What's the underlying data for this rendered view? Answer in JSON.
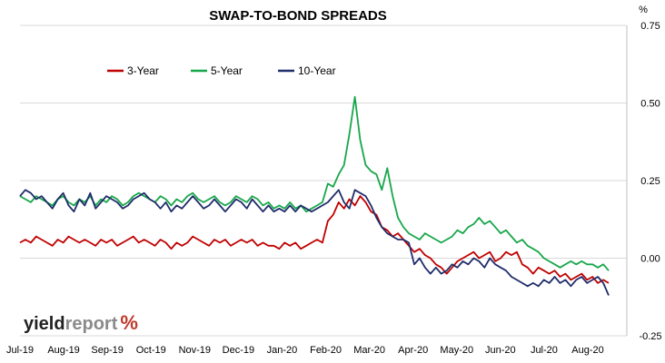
{
  "chart_data": {
    "type": "line",
    "title": "SWAP-TO-BOND SPREADS",
    "y_unit": "%",
    "x_ticks": [
      "Jul-19",
      "Aug-19",
      "Sep-19",
      "Oct-19",
      "Nov-19",
      "Dec-19",
      "Jan-20",
      "Feb-20",
      "Mar-20",
      "Apr-20",
      "May-20",
      "Jun-20",
      "Jul-20",
      "Aug-20"
    ],
    "y_ticks": [
      "0.75",
      "0.50",
      "0.25",
      "0.00",
      "-0.25"
    ],
    "ylim": [
      -0.25,
      0.75
    ],
    "grid": "horizontal",
    "legend_position": "top-left",
    "series": [
      {
        "name": "3-Year",
        "color": "#c00000",
        "values": [
          0.05,
          0.06,
          0.05,
          0.07,
          0.06,
          0.05,
          0.04,
          0.06,
          0.05,
          0.07,
          0.06,
          0.05,
          0.06,
          0.05,
          0.04,
          0.06,
          0.05,
          0.06,
          0.04,
          0.05,
          0.06,
          0.07,
          0.05,
          0.06,
          0.05,
          0.04,
          0.06,
          0.05,
          0.03,
          0.05,
          0.04,
          0.05,
          0.07,
          0.06,
          0.05,
          0.04,
          0.06,
          0.05,
          0.06,
          0.04,
          0.05,
          0.06,
          0.05,
          0.06,
          0.04,
          0.05,
          0.04,
          0.04,
          0.03,
          0.05,
          0.04,
          0.05,
          0.03,
          0.04,
          0.05,
          0.06,
          0.05,
          0.12,
          0.14,
          0.18,
          0.16,
          0.19,
          0.17,
          0.2,
          0.18,
          0.15,
          0.14,
          0.1,
          0.09,
          0.07,
          0.08,
          0.06,
          0.04,
          0.02,
          0.03,
          0.01,
          0.0,
          -0.02,
          -0.03,
          -0.05,
          -0.03,
          -0.01,
          0.0,
          0.01,
          0.02,
          0.0,
          0.01,
          0.02,
          -0.01,
          0.0,
          0.02,
          0.01,
          0.02,
          -0.02,
          -0.03,
          -0.05,
          -0.03,
          -0.04,
          -0.05,
          -0.04,
          -0.06,
          -0.05,
          -0.07,
          -0.06,
          -0.05,
          -0.07,
          -0.06,
          -0.08,
          -0.07,
          -0.08
        ]
      },
      {
        "name": "5-Year",
        "color": "#17a74a",
        "values": [
          0.2,
          0.19,
          0.18,
          0.2,
          0.19,
          0.18,
          0.17,
          0.19,
          0.2,
          0.18,
          0.17,
          0.19,
          0.18,
          0.2,
          0.17,
          0.19,
          0.18,
          0.2,
          0.19,
          0.17,
          0.18,
          0.2,
          0.21,
          0.2,
          0.19,
          0.18,
          0.2,
          0.19,
          0.17,
          0.19,
          0.18,
          0.2,
          0.21,
          0.19,
          0.18,
          0.19,
          0.2,
          0.18,
          0.17,
          0.18,
          0.2,
          0.19,
          0.18,
          0.2,
          0.19,
          0.17,
          0.18,
          0.16,
          0.17,
          0.16,
          0.18,
          0.16,
          0.17,
          0.15,
          0.16,
          0.17,
          0.18,
          0.24,
          0.23,
          0.27,
          0.3,
          0.4,
          0.52,
          0.38,
          0.3,
          0.28,
          0.27,
          0.22,
          0.29,
          0.2,
          0.13,
          0.1,
          0.08,
          0.07,
          0.06,
          0.08,
          0.07,
          0.06,
          0.05,
          0.06,
          0.07,
          0.09,
          0.08,
          0.1,
          0.11,
          0.13,
          0.11,
          0.12,
          0.1,
          0.08,
          0.09,
          0.07,
          0.05,
          0.06,
          0.04,
          0.03,
          0.02,
          0.0,
          -0.01,
          -0.02,
          -0.03,
          -0.02,
          -0.01,
          -0.02,
          -0.01,
          -0.02,
          -0.02,
          -0.03,
          -0.02,
          -0.04
        ]
      },
      {
        "name": "10-Year",
        "color": "#1f2d6b",
        "values": [
          0.2,
          0.22,
          0.21,
          0.19,
          0.2,
          0.18,
          0.16,
          0.19,
          0.21,
          0.17,
          0.15,
          0.19,
          0.17,
          0.21,
          0.16,
          0.18,
          0.2,
          0.19,
          0.18,
          0.16,
          0.17,
          0.19,
          0.2,
          0.21,
          0.19,
          0.18,
          0.16,
          0.18,
          0.15,
          0.17,
          0.16,
          0.18,
          0.2,
          0.18,
          0.16,
          0.17,
          0.19,
          0.17,
          0.15,
          0.17,
          0.19,
          0.18,
          0.16,
          0.19,
          0.17,
          0.15,
          0.17,
          0.15,
          0.16,
          0.15,
          0.17,
          0.15,
          0.17,
          0.16,
          0.15,
          0.16,
          0.17,
          0.18,
          0.2,
          0.22,
          0.18,
          0.16,
          0.22,
          0.21,
          0.2,
          0.17,
          0.13,
          0.1,
          0.08,
          0.07,
          0.06,
          0.06,
          0.05,
          -0.02,
          0.0,
          -0.03,
          -0.05,
          -0.03,
          -0.05,
          -0.04,
          -0.02,
          -0.03,
          -0.01,
          -0.02,
          0.0,
          -0.01,
          -0.03,
          0.0,
          -0.02,
          -0.03,
          -0.04,
          -0.06,
          -0.07,
          -0.08,
          -0.09,
          -0.08,
          -0.09,
          -0.07,
          -0.08,
          -0.06,
          -0.08,
          -0.07,
          -0.09,
          -0.07,
          -0.06,
          -0.08,
          -0.07,
          -0.06,
          -0.08,
          -0.12
        ]
      }
    ]
  },
  "brand": {
    "part1": "yield",
    "part2": "report",
    "part3": "%"
  }
}
